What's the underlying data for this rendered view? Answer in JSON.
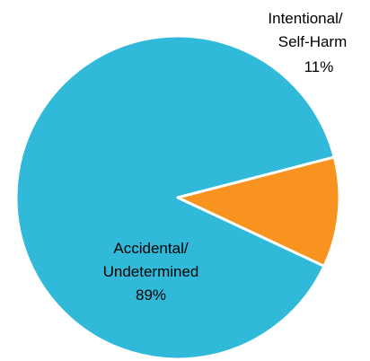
{
  "chart_data": {
    "type": "pie",
    "title": "",
    "slices": [
      {
        "label_lines": [
          "Accidental/",
          "Undetermined"
        ],
        "value": 89,
        "value_label": "89%",
        "color": "#31B9DA"
      },
      {
        "label_lines": [
          "Intentional/",
          "Self-Harm"
        ],
        "value": 11,
        "value_label": "11%",
        "color": "#F7931E"
      }
    ],
    "start_angle_deg": 14.5,
    "direction": "counterclockwise",
    "legend": "none"
  }
}
